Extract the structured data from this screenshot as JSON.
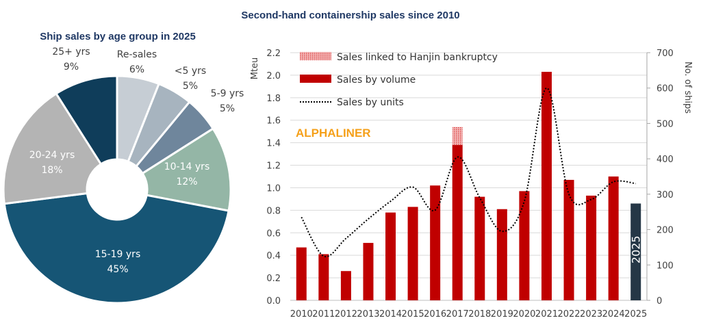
{
  "title": "Second-hand containership sales since 2010",
  "chart_data": [
    {
      "type": "pie",
      "title": "Ship sales by age group in 2025",
      "donut": true,
      "slices": [
        {
          "label": "Re-sales",
          "value": 6,
          "display": "6%",
          "color": "#c6cdd4"
        },
        {
          "label": "<5 yrs",
          "value": 5,
          "display": "5%",
          "color": "#a7b4bf"
        },
        {
          "label": "5-9 yrs",
          "value": 5,
          "display": "5%",
          "color": "#6f869c"
        },
        {
          "label": "10-14 yrs",
          "value": 12,
          "display": "12%",
          "color": "#94b6a6"
        },
        {
          "label": "15-19 yrs",
          "value": 45,
          "display": "45%",
          "color": "#165575"
        },
        {
          "label": "20-24 yrs",
          "value": 18,
          "display": "18%",
          "color": "#b4b4b4"
        },
        {
          "label": "25+ yrs",
          "value": 9,
          "display": "9%",
          "color": "#0f3d5a"
        }
      ]
    },
    {
      "type": "bar",
      "categories": [
        "2010",
        "2011",
        "2012",
        "2013",
        "2014",
        "2015",
        "2016",
        "2017",
        "2018",
        "2019",
        "2020",
        "2021",
        "2022",
        "2023",
        "2024",
        "2025"
      ],
      "ylabel": "Mteu",
      "y2label": "No. of ships",
      "ylim": [
        0,
        2.2
      ],
      "y2lim": [
        0,
        700
      ],
      "yticks": [
        "0.0",
        "0.2",
        "0.4",
        "0.6",
        "0.8",
        "1.0",
        "1.2",
        "1.4",
        "1.6",
        "1.8",
        "2.0",
        "2.2"
      ],
      "y2ticks": [
        "0",
        "100",
        "200",
        "300",
        "400",
        "500",
        "600",
        "700"
      ],
      "grid": true,
      "legend_position": "top-left",
      "series": [
        {
          "name": "Sales by volume",
          "kind": "bar",
          "axis": "left",
          "color": "#c00000",
          "values": [
            0.47,
            0.41,
            0.26,
            0.51,
            0.78,
            0.83,
            1.02,
            1.38,
            0.92,
            0.81,
            0.97,
            2.03,
            1.07,
            0.93,
            1.1,
            0.86
          ]
        },
        {
          "name": "Sales linked to Hanjin bankruptcy",
          "kind": "stacked-bar",
          "axis": "left",
          "color": "#e58080",
          "values": [
            0,
            0,
            0,
            0,
            0,
            0,
            0,
            0.16,
            0,
            0,
            0,
            0,
            0,
            0,
            0,
            0
          ]
        },
        {
          "name": "Sales by units",
          "kind": "dotted-line",
          "axis": "right",
          "color": "#000000",
          "values": [
            235,
            125,
            175,
            230,
            280,
            320,
            255,
            405,
            290,
            195,
            280,
            600,
            300,
            285,
            335,
            330
          ]
        }
      ],
      "highlight": {
        "category": "2025",
        "color": "#253746",
        "label": "2025"
      },
      "watermark": "ALPHALINER"
    }
  ]
}
